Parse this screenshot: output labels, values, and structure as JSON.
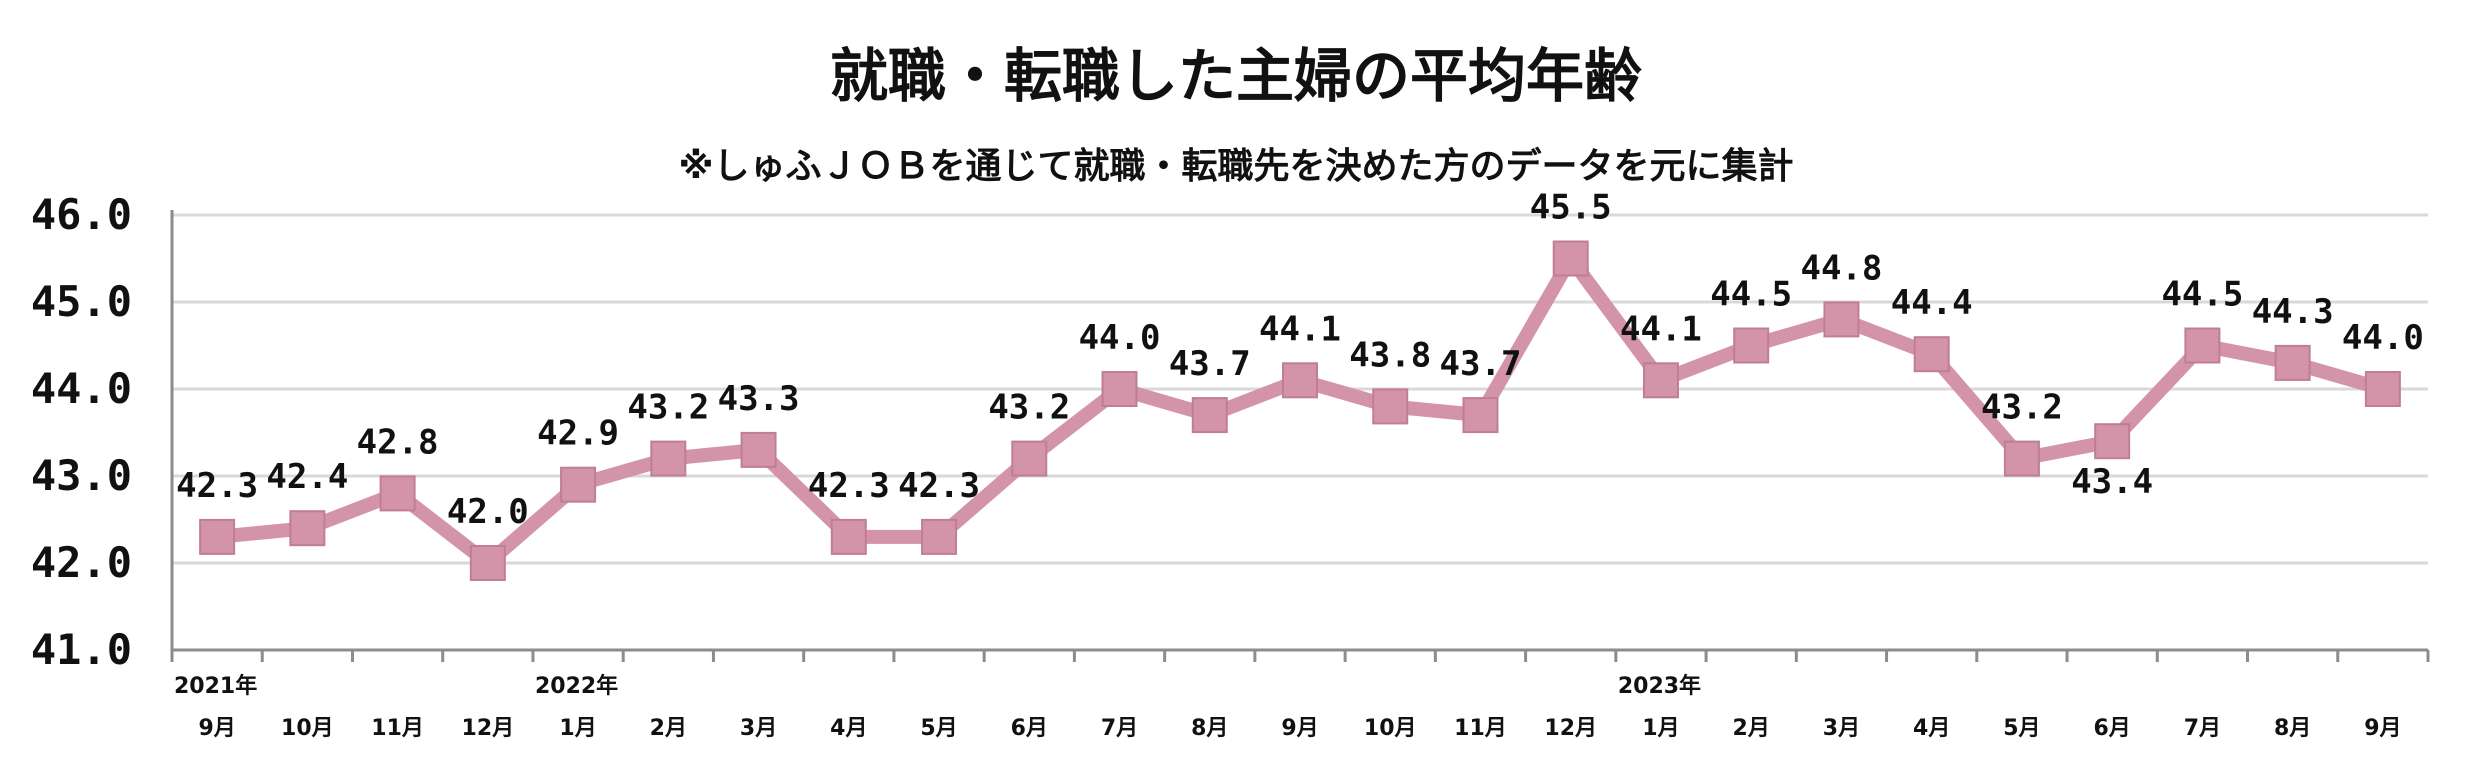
{
  "chart_data": {
    "type": "line",
    "title": "就職・転職した主婦の平均年齢",
    "subtitle": "※しゅふＪＯＢを通じて就職・転職先を決めた方のデータを元に集計",
    "categories": [
      "9月",
      "10月",
      "11月",
      "12月",
      "1月",
      "2月",
      "3月",
      "4月",
      "5月",
      "6月",
      "7月",
      "8月",
      "9月",
      "10月",
      "11月",
      "12月",
      "1月",
      "2月",
      "3月",
      "4月",
      "5月",
      "6月",
      "7月",
      "8月",
      "9月"
    ],
    "year_labels": [
      {
        "index": 0,
        "label": "2021年"
      },
      {
        "index": 4,
        "label": "2022年"
      },
      {
        "index": 16,
        "label": "2023年"
      }
    ],
    "values": [
      42.3,
      42.4,
      42.8,
      42.0,
      42.9,
      43.2,
      43.3,
      42.3,
      42.3,
      43.2,
      44.0,
      43.7,
      44.1,
      43.8,
      43.7,
      45.5,
      44.1,
      44.5,
      44.8,
      44.4,
      43.2,
      43.4,
      44.5,
      44.3,
      44.0
    ],
    "value_labels": [
      "42.3",
      "42.4",
      "42.8",
      "42.0",
      "42.9",
      "43.2",
      "43.3",
      "42.3",
      "42.3",
      "43.2",
      "44.0",
      "43.7",
      "44.1",
      "43.8",
      "43.7",
      "45.5",
      "44.1",
      "44.5",
      "44.8",
      "44.4",
      "43.2",
      "43.4",
      "44.5",
      "44.3",
      "44.0"
    ],
    "yticks": [
      "41.0",
      "42.0",
      "43.0",
      "44.0",
      "45.0",
      "46.0"
    ],
    "ylim": [
      41.0,
      46.0
    ],
    "grid": true,
    "legend": "none",
    "line_color": "#d393a8",
    "marker_color": "#d393a8",
    "grid_color": "#d9d9d9"
  }
}
